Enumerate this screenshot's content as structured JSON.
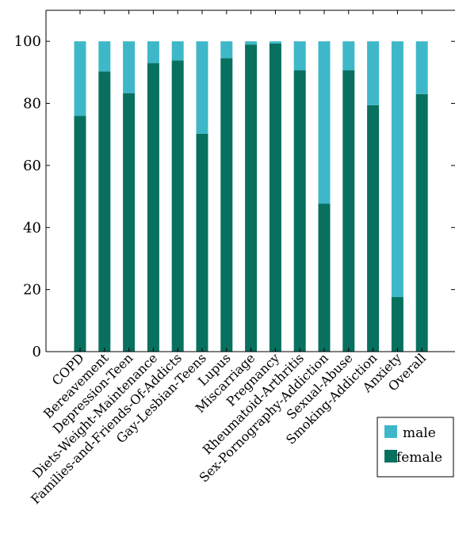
{
  "chart_data": {
    "type": "bar",
    "stacked": true,
    "categories": [
      "COPD",
      "Bereavement",
      "Depression-Teen",
      "Diets-Weight-Maintenance",
      "Families-and-Friends-Of-Addicts",
      "Gay-Lesbian-Teens",
      "Lupus",
      "Miscarriage",
      "Pregnancy",
      "Rheumatoid-Arthritis",
      "Sex-Pornography-Addiction",
      "Sexual-Abuse",
      "Smoking-Addiction",
      "Anxiety",
      "Overall"
    ],
    "series": [
      {
        "name": "female",
        "color": "#08705f",
        "values": [
          76,
          90.3,
          83.3,
          93,
          93.8,
          70.2,
          94.6,
          98.9,
          99.3,
          90.7,
          47.7,
          90.7,
          79.4,
          17.6,
          83
        ]
      },
      {
        "name": "male",
        "color": "#3eb8c8",
        "values": [
          24,
          9.7,
          16.7,
          7,
          6.2,
          29.8,
          5.4,
          1.1,
          0.7,
          9.3,
          52.3,
          9.3,
          20.6,
          82.4,
          17
        ]
      }
    ],
    "yticks": [
      0,
      20,
      40,
      60,
      80,
      100
    ],
    "ylim": [
      0,
      110
    ],
    "title": "",
    "xlabel": "",
    "ylabel": "",
    "legend": {
      "position": "bottom-right",
      "entries": [
        "male",
        "female"
      ]
    },
    "grid": false
  }
}
